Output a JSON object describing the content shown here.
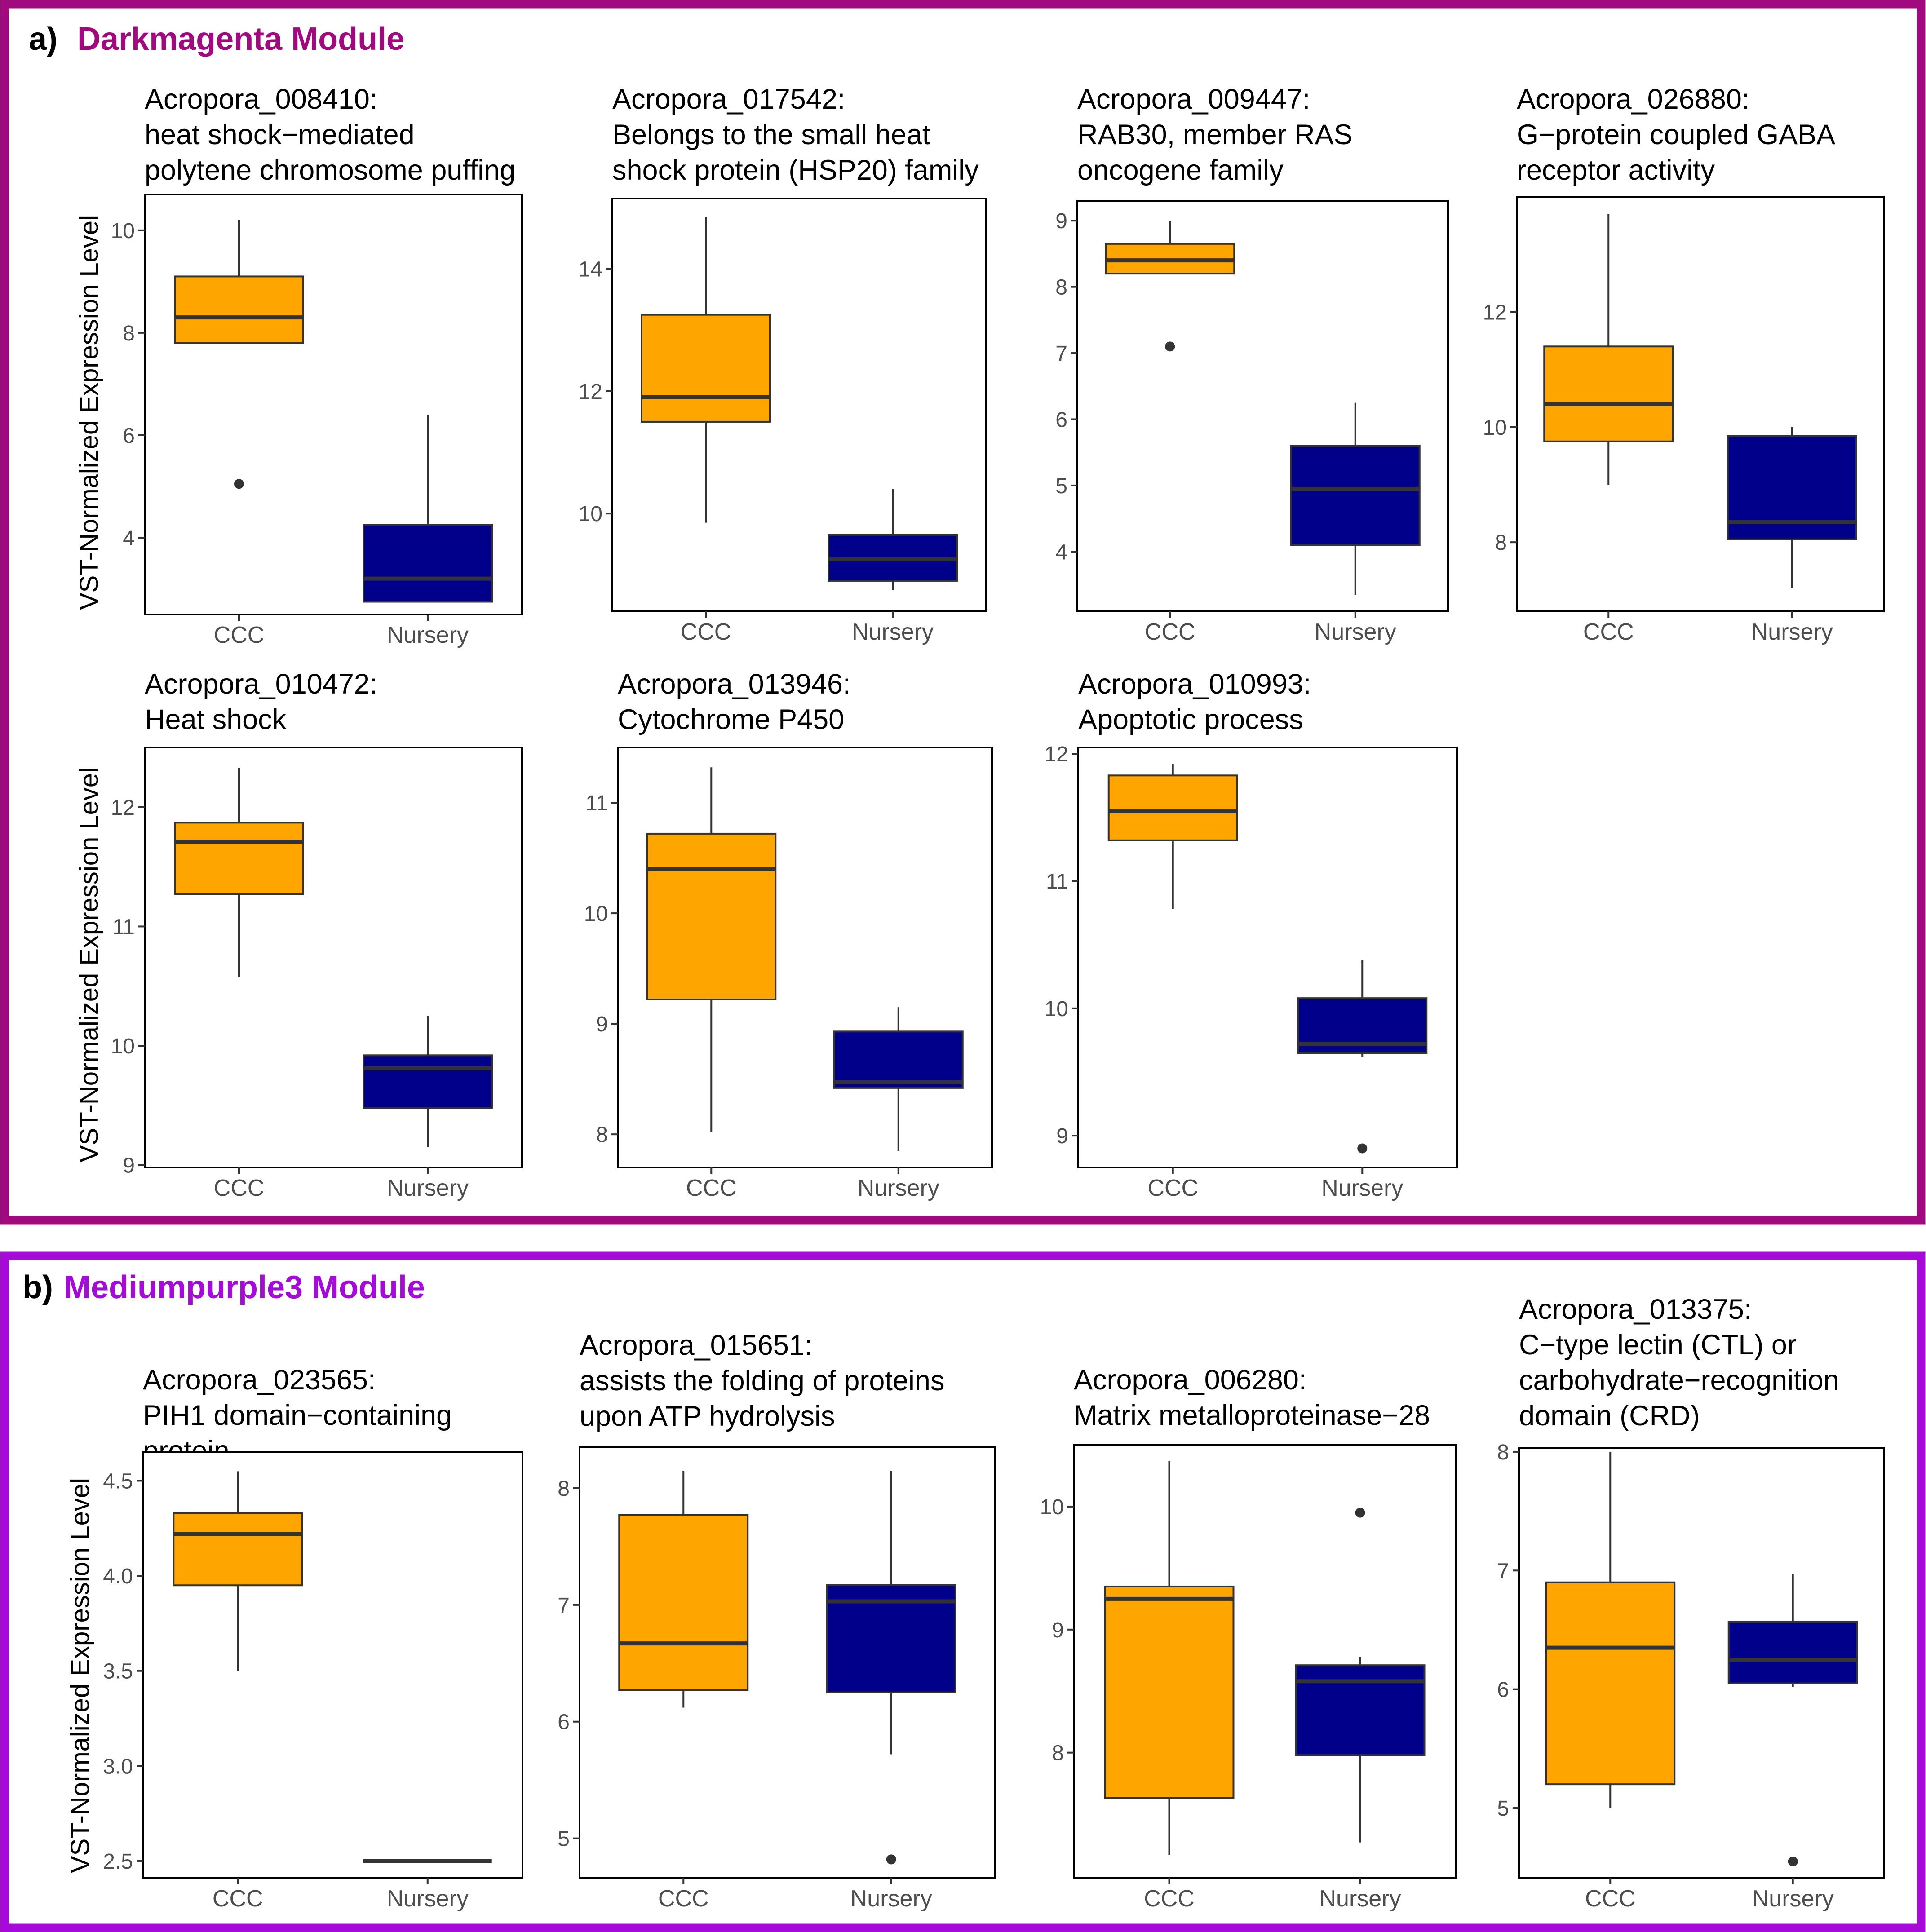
{
  "colors": {
    "ccc_fill": "#FFA500",
    "nursery_fill": "#00008B",
    "darkmagenta_border": "#A1097E",
    "mediumpurple3_border": "#A60ADB",
    "darkmagenta_title": "#A1097E",
    "mediumpurple3_title": "#A60ADB"
  },
  "panels": [
    {
      "label": "a)",
      "title": "Darkmagenta Module",
      "border_color": "darkmagenta_border",
      "ylabel": "VST-Normalized Expression Level"
    },
    {
      "label": "b)",
      "title": "Mediumpurple3 Module",
      "border_color": "mediumpurple3_border",
      "ylabel": "VST-Normalized Expression Level"
    }
  ],
  "chart_data": [
    {
      "type": "box",
      "panel": 0,
      "row": 0,
      "title_lines": [
        "Acropora_008410:",
        "heat shock−mediated",
        "polytene chromosome puffing"
      ],
      "categories": [
        "CCC",
        "Nursery"
      ],
      "ylim": [
        2.5,
        10.7
      ],
      "yticks": [
        4,
        6,
        8,
        10
      ],
      "boxes": [
        {
          "category": "CCC",
          "whisker_low": 7.8,
          "q1": 7.8,
          "median": 8.3,
          "q3": 9.1,
          "whisker_high": 10.2,
          "outliers": [
            5.05
          ]
        },
        {
          "category": "Nursery",
          "whisker_low": 2.75,
          "q1": 2.75,
          "median": 3.2,
          "q3": 4.25,
          "whisker_high": 6.4,
          "outliers": []
        }
      ]
    },
    {
      "type": "box",
      "panel": 0,
      "row": 0,
      "title_lines": [
        "Acropora_017542:",
        "Belongs to the small heat",
        "shock protein (HSP20) family"
      ],
      "categories": [
        "CCC",
        "Nursery"
      ],
      "ylim": [
        8.4,
        15.15
      ],
      "yticks": [
        10,
        12,
        14
      ],
      "boxes": [
        {
          "category": "CCC",
          "whisker_low": 9.85,
          "q1": 11.5,
          "median": 11.9,
          "q3": 13.25,
          "whisker_high": 14.85,
          "outliers": []
        },
        {
          "category": "Nursery",
          "whisker_low": 8.75,
          "q1": 8.9,
          "median": 9.25,
          "q3": 9.65,
          "whisker_high": 10.4,
          "outliers": []
        }
      ]
    },
    {
      "type": "box",
      "panel": 0,
      "row": 0,
      "title_lines": [
        "Acropora_009447:",
        "RAB30, member RAS",
        "oncogene family"
      ],
      "categories": [
        "CCC",
        "Nursery"
      ],
      "ylim": [
        3.1,
        9.3
      ],
      "yticks": [
        4,
        5,
        6,
        7,
        8,
        9
      ],
      "boxes": [
        {
          "category": "CCC",
          "whisker_low": 8.2,
          "q1": 8.2,
          "median": 8.4,
          "q3": 8.65,
          "whisker_high": 9.0,
          "outliers": [
            7.1
          ]
        },
        {
          "category": "Nursery",
          "whisker_low": 3.35,
          "q1": 4.1,
          "median": 4.95,
          "q3": 5.6,
          "whisker_high": 6.25,
          "outliers": []
        }
      ]
    },
    {
      "type": "box",
      "panel": 0,
      "row": 0,
      "title_lines": [
        "Acropora_026880:",
        "G−protein coupled GABA",
        "receptor activity"
      ],
      "categories": [
        "CCC",
        "Nursery"
      ],
      "ylim": [
        6.8,
        14.0
      ],
      "yticks": [
        8,
        10,
        12
      ],
      "boxes": [
        {
          "category": "CCC",
          "whisker_low": 9.0,
          "q1": 9.75,
          "median": 10.4,
          "q3": 11.4,
          "whisker_high": 13.7,
          "outliers": []
        },
        {
          "category": "Nursery",
          "whisker_low": 7.2,
          "q1": 8.05,
          "median": 8.35,
          "q3": 9.85,
          "whisker_high": 10.0,
          "outliers": []
        }
      ]
    },
    {
      "type": "box",
      "panel": 0,
      "row": 1,
      "title_lines": [
        "Acropora_010472:",
        "Heat shock"
      ],
      "categories": [
        "CCC",
        "Nursery"
      ],
      "ylim": [
        8.98,
        12.5
      ],
      "yticks": [
        9,
        10,
        11,
        12
      ],
      "boxes": [
        {
          "category": "CCC",
          "whisker_low": 10.58,
          "q1": 11.27,
          "median": 11.71,
          "q3": 11.87,
          "whisker_high": 12.33,
          "outliers": []
        },
        {
          "category": "Nursery",
          "whisker_low": 9.15,
          "q1": 9.48,
          "median": 9.81,
          "q3": 9.92,
          "whisker_high": 10.25,
          "outliers": []
        }
      ]
    },
    {
      "type": "box",
      "panel": 0,
      "row": 1,
      "title_lines": [
        "Acropora_013946:",
        "Cytochrome P450"
      ],
      "categories": [
        "CCC",
        "Nursery"
      ],
      "ylim": [
        7.7,
        11.5
      ],
      "yticks": [
        8,
        9,
        10,
        11
      ],
      "boxes": [
        {
          "category": "CCC",
          "whisker_low": 8.02,
          "q1": 9.22,
          "median": 10.4,
          "q3": 10.72,
          "whisker_high": 11.32,
          "outliers": []
        },
        {
          "category": "Nursery",
          "whisker_low": 7.85,
          "q1": 8.42,
          "median": 8.47,
          "q3": 8.93,
          "whisker_high": 9.15,
          "outliers": []
        }
      ]
    },
    {
      "type": "box",
      "panel": 0,
      "row": 1,
      "title_lines": [
        "Acropora_010993:",
        "Apoptotic process"
      ],
      "categories": [
        "CCC",
        "Nursery"
      ],
      "ylim": [
        8.75,
        12.05
      ],
      "yticks": [
        9,
        10,
        11,
        12
      ],
      "boxes": [
        {
          "category": "CCC",
          "whisker_low": 10.78,
          "q1": 11.32,
          "median": 11.55,
          "q3": 11.83,
          "whisker_high": 11.92,
          "outliers": []
        },
        {
          "category": "Nursery",
          "whisker_low": 9.62,
          "q1": 9.65,
          "median": 9.72,
          "q3": 10.08,
          "whisker_high": 10.38,
          "outliers": [
            8.9
          ]
        }
      ]
    },
    {
      "type": "box",
      "panel": 1,
      "row": 2,
      "title_lines": [
        "Acropora_023565:",
        "PIH1 domain−containing",
        "protein"
      ],
      "categories": [
        "CCC",
        "Nursery"
      ],
      "ylim": [
        2.41,
        4.65
      ],
      "yticks": [
        2.5,
        3.0,
        3.5,
        4.0,
        4.5
      ],
      "ytick_decimals": 1,
      "boxes": [
        {
          "category": "CCC",
          "whisker_low": 3.5,
          "q1": 3.95,
          "median": 4.22,
          "q3": 4.33,
          "whisker_high": 4.55,
          "outliers": []
        },
        {
          "category": "Nursery",
          "whisker_low": 2.5,
          "q1": 2.5,
          "median": 2.5,
          "q3": 2.5,
          "whisker_high": 2.5,
          "outliers": []
        }
      ]
    },
    {
      "type": "box",
      "panel": 1,
      "row": 2,
      "title_lines": [
        "Acropora_015651:",
        "assists the folding of proteins",
        "upon ATP hydrolysis"
      ],
      "categories": [
        "CCC",
        "Nursery"
      ],
      "ylim": [
        4.66,
        8.35
      ],
      "yticks": [
        5,
        6,
        7,
        8
      ],
      "boxes": [
        {
          "category": "CCC",
          "whisker_low": 6.12,
          "q1": 6.27,
          "median": 6.67,
          "q3": 7.77,
          "whisker_high": 8.15,
          "outliers": []
        },
        {
          "category": "Nursery",
          "whisker_low": 5.72,
          "q1": 6.25,
          "median": 7.03,
          "q3": 7.17,
          "whisker_high": 8.15,
          "outliers": [
            4.82
          ]
        }
      ]
    },
    {
      "type": "box",
      "panel": 1,
      "row": 2,
      "title_lines": [
        "Acropora_006280:",
        "Matrix metalloproteinase−28"
      ],
      "categories": [
        "CCC",
        "Nursery"
      ],
      "ylim": [
        6.98,
        10.5
      ],
      "yticks": [
        8,
        9,
        10
      ],
      "boxes": [
        {
          "category": "CCC",
          "whisker_low": 7.17,
          "q1": 7.63,
          "median": 9.25,
          "q3": 9.35,
          "whisker_high": 10.37,
          "outliers": []
        },
        {
          "category": "Nursery",
          "whisker_low": 7.27,
          "q1": 7.98,
          "median": 8.58,
          "q3": 8.71,
          "whisker_high": 8.78,
          "outliers": [
            9.95
          ]
        }
      ]
    },
    {
      "type": "box",
      "panel": 1,
      "row": 2,
      "title_lines": [
        "Acropora_013375:",
        "C−type lectin (CTL) or",
        "carbohydrate−recognition",
        "domain (CRD)"
      ],
      "categories": [
        "CCC",
        "Nursery"
      ],
      "ylim": [
        4.41,
        8.03
      ],
      "yticks": [
        5,
        6,
        7,
        8
      ],
      "boxes": [
        {
          "category": "CCC",
          "whisker_low": 5.0,
          "q1": 5.2,
          "median": 6.35,
          "q3": 6.9,
          "whisker_high": 8.0,
          "outliers": []
        },
        {
          "category": "Nursery",
          "whisker_low": 6.02,
          "q1": 6.05,
          "median": 6.25,
          "q3": 6.57,
          "whisker_high": 6.97,
          "outliers": [
            4.55
          ]
        }
      ]
    }
  ]
}
